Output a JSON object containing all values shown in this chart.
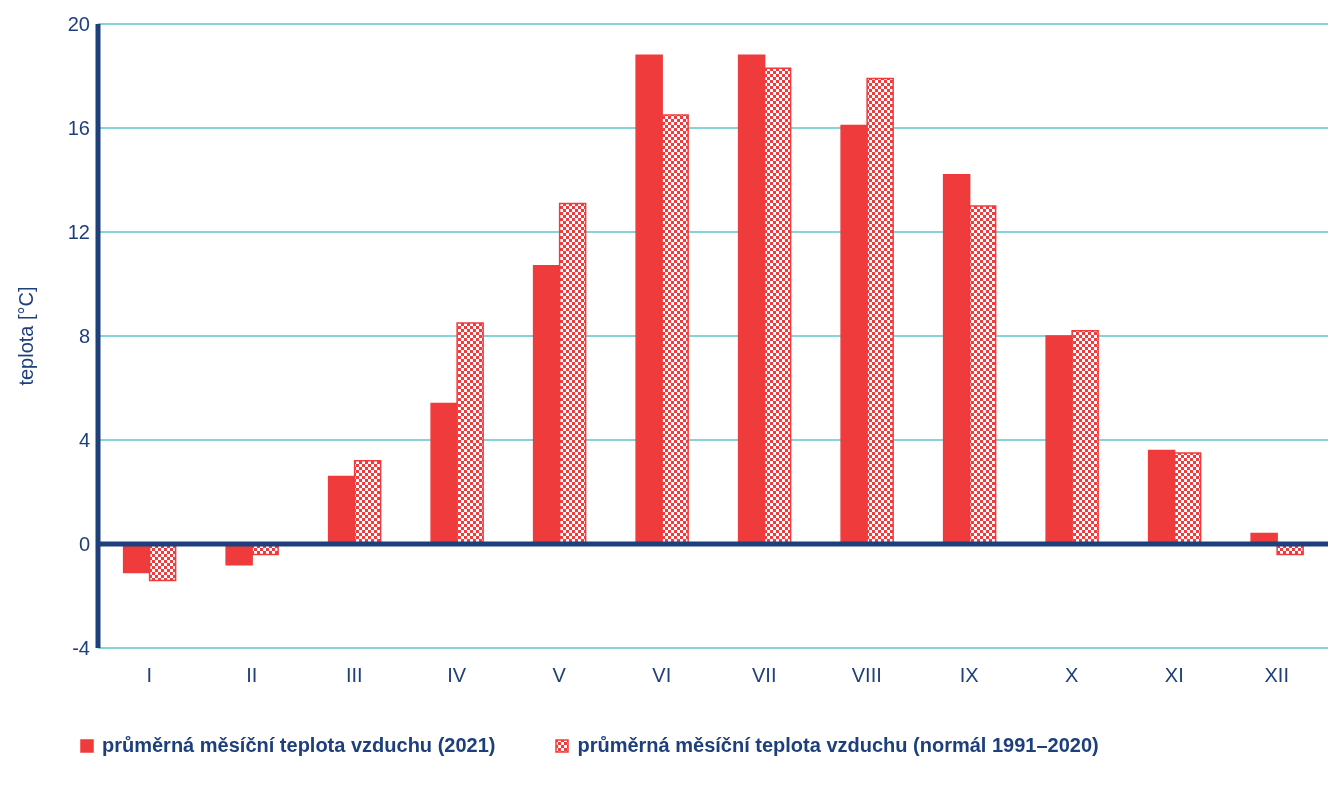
{
  "chart_data": {
    "type": "bar",
    "ylabel": "teplota [°C]",
    "categories": [
      "I",
      "II",
      "III",
      "IV",
      "V",
      "VI",
      "VII",
      "VIII",
      "IX",
      "X",
      "XI",
      "XII"
    ],
    "series": [
      {
        "name": "průměrná měsíční teplota vzduchu (2021)",
        "color": "#ef3b3b",
        "values": [
          -1.1,
          -0.8,
          2.6,
          5.4,
          10.7,
          18.8,
          18.8,
          16.1,
          14.2,
          8.0,
          3.6,
          0.4
        ]
      },
      {
        "name": "průměrná měsíční teplota vzduchu (normál 1991–2020)",
        "color": "#ef3b3b",
        "values": [
          -1.4,
          -0.4,
          3.2,
          8.5,
          13.1,
          16.5,
          18.3,
          17.9,
          13.0,
          8.2,
          3.5,
          -0.4
        ]
      }
    ],
    "ylim": [
      -4,
      20
    ],
    "yticks": [
      -4,
      0,
      4,
      8,
      12,
      16,
      20
    ],
    "grid": "y",
    "legend": "bottom",
    "ref_lines": [
      {
        "axis": "y",
        "value": 0,
        "color": "#1d3f7c"
      }
    ]
  }
}
